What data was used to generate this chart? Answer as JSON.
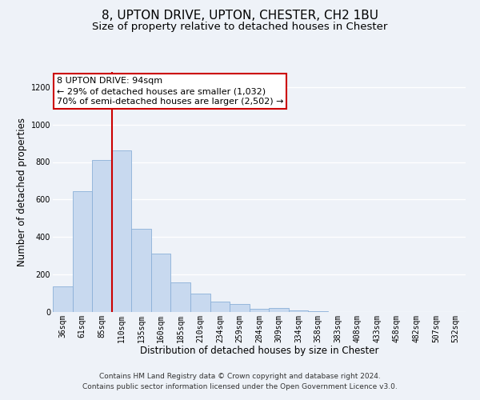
{
  "title": "8, UPTON DRIVE, UPTON, CHESTER, CH2 1BU",
  "subtitle": "Size of property relative to detached houses in Chester",
  "xlabel": "Distribution of detached houses by size in Chester",
  "ylabel": "Number of detached properties",
  "bar_color": "#c8d9ef",
  "bar_edge_color": "#8ab0d8",
  "categories": [
    "36sqm",
    "61sqm",
    "85sqm",
    "110sqm",
    "135sqm",
    "160sqm",
    "185sqm",
    "210sqm",
    "234sqm",
    "259sqm",
    "284sqm",
    "309sqm",
    "334sqm",
    "358sqm",
    "383sqm",
    "408sqm",
    "433sqm",
    "458sqm",
    "482sqm",
    "507sqm",
    "532sqm"
  ],
  "values": [
    135,
    645,
    810,
    860,
    445,
    310,
    160,
    97,
    55,
    42,
    18,
    20,
    8,
    3,
    0,
    0,
    0,
    0,
    0,
    0,
    0
  ],
  "ylim": [
    0,
    1280
  ],
  "yticks": [
    0,
    200,
    400,
    600,
    800,
    1000,
    1200
  ],
  "vline_x": 2.5,
  "property_label": "8 UPTON DRIVE: 94sqm",
  "annotation_line1": "← 29% of detached houses are smaller (1,032)",
  "annotation_line2": "70% of semi-detached houses are larger (2,502) →",
  "annotation_box_color": "#ffffff",
  "annotation_box_edge": "#cc0000",
  "vline_color": "#cc0000",
  "footer1": "Contains HM Land Registry data © Crown copyright and database right 2024.",
  "footer2": "Contains public sector information licensed under the Open Government Licence v3.0.",
  "background_color": "#eef2f8",
  "grid_color": "#ffffff",
  "title_fontsize": 11,
  "subtitle_fontsize": 9.5,
  "axis_label_fontsize": 8.5,
  "tick_fontsize": 7,
  "footer_fontsize": 6.5,
  "annotation_fontsize": 8
}
